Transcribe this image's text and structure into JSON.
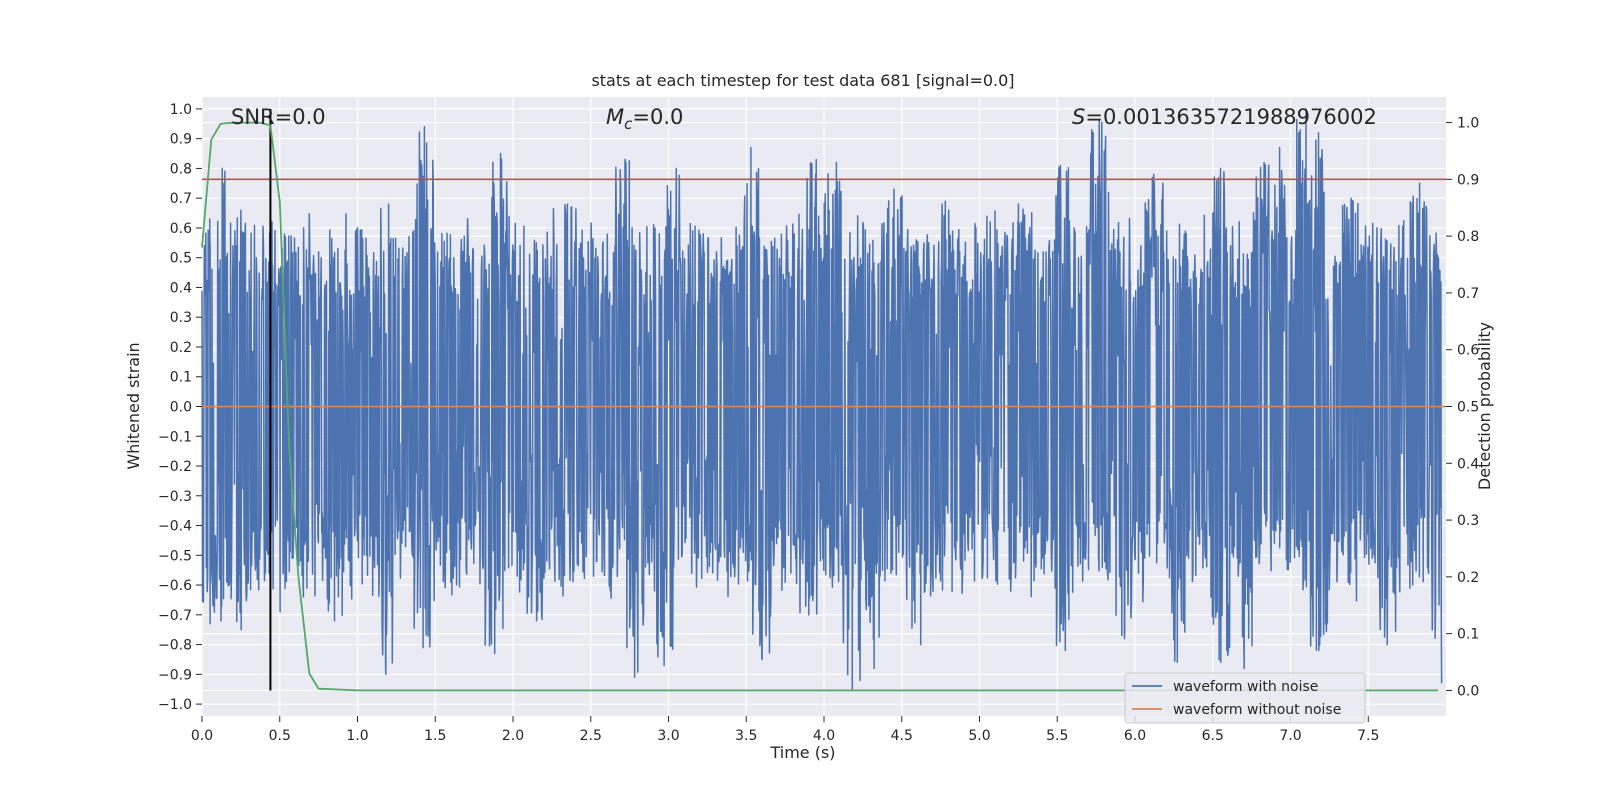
{
  "chart_data": {
    "type": "line",
    "title": "stats at each timestep for test data 681 [signal=0.0]",
    "xlabel": "Time (s)",
    "ylabel": "Whitened strain",
    "ylabel_right": "Detection probability",
    "xlim": [
      0.0,
      8.0
    ],
    "ylim": [
      -1.04,
      1.04
    ],
    "ylim_right": [
      -0.045,
      1.045
    ],
    "x_ticks": [
      0.0,
      0.5,
      1.0,
      1.5,
      2.0,
      2.5,
      3.0,
      3.5,
      4.0,
      4.5,
      5.0,
      5.5,
      6.0,
      6.5,
      7.0,
      7.5
    ],
    "x_tick_labels": [
      "0.0",
      "0.5",
      "1.0",
      "1.5",
      "2.0",
      "2.5",
      "3.0",
      "3.5",
      "4.0",
      "4.5",
      "5.0",
      "5.5",
      "6.0",
      "6.5",
      "7.0",
      "7.5"
    ],
    "y_ticks": [
      1.0,
      0.9,
      0.8,
      0.7,
      0.6,
      0.5,
      0.4,
      0.3,
      0.2,
      0.1,
      0.0,
      -0.1,
      -0.2,
      -0.3,
      -0.4,
      -0.5,
      -0.6,
      -0.7,
      -0.8,
      -0.9,
      -1.0
    ],
    "y_tick_labels": [
      "1.0",
      "0.9",
      "0.8",
      "0.7",
      "0.6",
      "0.5",
      "0.4",
      "0.3",
      "0.2",
      "0.1",
      "0.0",
      "−0.1",
      "−0.2",
      "−0.3",
      "−0.4",
      "−0.5",
      "−0.6",
      "−0.7",
      "−0.8",
      "−0.9",
      "−1.0"
    ],
    "y_right_ticks": [
      1.0,
      0.9,
      0.8,
      0.7,
      0.6,
      0.5,
      0.4,
      0.3,
      0.2,
      0.1,
      0.0
    ],
    "y_right_tick_labels": [
      "1.0",
      "0.9",
      "0.8",
      "0.7",
      "0.6",
      "0.5",
      "0.4",
      "0.3",
      "0.2",
      "0.1",
      "0.0"
    ],
    "annotations": {
      "snr_text": "SNR=0.0",
      "mc_symbol": "M",
      "mc_sub": "c",
      "mc_value": "=0.0",
      "s_symbol": "S",
      "s_value": "=0.0013635721988976002"
    },
    "series": [
      {
        "name": "waveform with noise",
        "color": "#4c72b0",
        "description_values": "dense noise, ±0.4 typical band, peaks near ±1.0",
        "envelope_peaks_upper": [
          [
            0.05,
            0.63
          ],
          [
            0.13,
            0.8
          ],
          [
            0.25,
            0.66
          ],
          [
            0.45,
            0.62
          ],
          [
            0.53,
            0.58
          ],
          [
            0.75,
            0.52
          ],
          [
            1.0,
            0.6
          ],
          [
            1.2,
            0.68
          ],
          [
            1.43,
            0.94
          ],
          [
            1.92,
            0.85
          ],
          [
            2.35,
            0.68
          ],
          [
            2.72,
            0.83
          ],
          [
            3.05,
            0.8
          ],
          [
            3.53,
            0.87
          ],
          [
            3.95,
            0.83
          ],
          [
            4.08,
            0.82
          ],
          [
            4.45,
            0.73
          ],
          [
            4.78,
            0.69
          ],
          [
            5.25,
            0.68
          ],
          [
            5.52,
            0.81
          ],
          [
            5.77,
            0.96
          ],
          [
            6.12,
            0.78
          ],
          [
            6.55,
            0.8
          ],
          [
            6.83,
            0.82
          ],
          [
            6.93,
            0.87
          ],
          [
            7.1,
            1.0
          ],
          [
            7.18,
            0.92
          ],
          [
            7.39,
            0.7
          ],
          [
            7.83,
            0.75
          ]
        ],
        "envelope_peaks_lower": [
          [
            0.05,
            -0.73
          ],
          [
            0.12,
            -0.72
          ],
          [
            0.25,
            -0.75
          ],
          [
            0.5,
            -0.69
          ],
          [
            0.65,
            -0.64
          ],
          [
            0.85,
            -0.72
          ],
          [
            1.18,
            -0.9
          ],
          [
            1.42,
            -0.81
          ],
          [
            1.88,
            -0.83
          ],
          [
            2.15,
            -0.72
          ],
          [
            2.78,
            -0.91
          ],
          [
            2.97,
            -0.87
          ],
          [
            3.6,
            -0.85
          ],
          [
            3.9,
            -0.7
          ],
          [
            4.18,
            -0.95
          ],
          [
            4.32,
            -0.88
          ],
          [
            4.62,
            -0.8
          ],
          [
            5.55,
            -0.82
          ],
          [
            5.93,
            -0.78
          ],
          [
            6.27,
            -0.86
          ],
          [
            6.55,
            -0.86
          ],
          [
            6.7,
            -0.88
          ],
          [
            7.18,
            -0.82
          ],
          [
            7.62,
            -0.8
          ],
          [
            7.97,
            -0.93
          ]
        ]
      },
      {
        "name": "waveform without noise",
        "color": "#dd8452",
        "x": [
          0.0,
          8.0
        ],
        "y": [
          0.0,
          0.0
        ]
      },
      {
        "name": "detection probability",
        "color": "#55a868",
        "axis": "right",
        "x": [
          0.0,
          0.06,
          0.12,
          0.2,
          0.3,
          0.37,
          0.44,
          0.5,
          0.56,
          0.62,
          0.69,
          0.75,
          1.0,
          7.95
        ],
        "y": [
          0.78,
          0.97,
          0.998,
          1.0,
          1.0,
          1.0,
          0.995,
          0.86,
          0.43,
          0.2,
          0.03,
          0.003,
          0.0,
          0.0
        ]
      }
    ],
    "reference_lines": [
      {
        "kind": "horizontal",
        "axis": "right",
        "value": 0.9,
        "color": "#c44e52"
      },
      {
        "kind": "vertical",
        "x": 0.44,
        "color": "#000000"
      }
    ],
    "legend": {
      "placement": "lower-right",
      "entries": [
        "waveform with noise",
        "waveform without noise"
      ],
      "colors": [
        "#4c72b0",
        "#dd8452"
      ]
    },
    "grid": true,
    "background": "#eaeaf2"
  }
}
